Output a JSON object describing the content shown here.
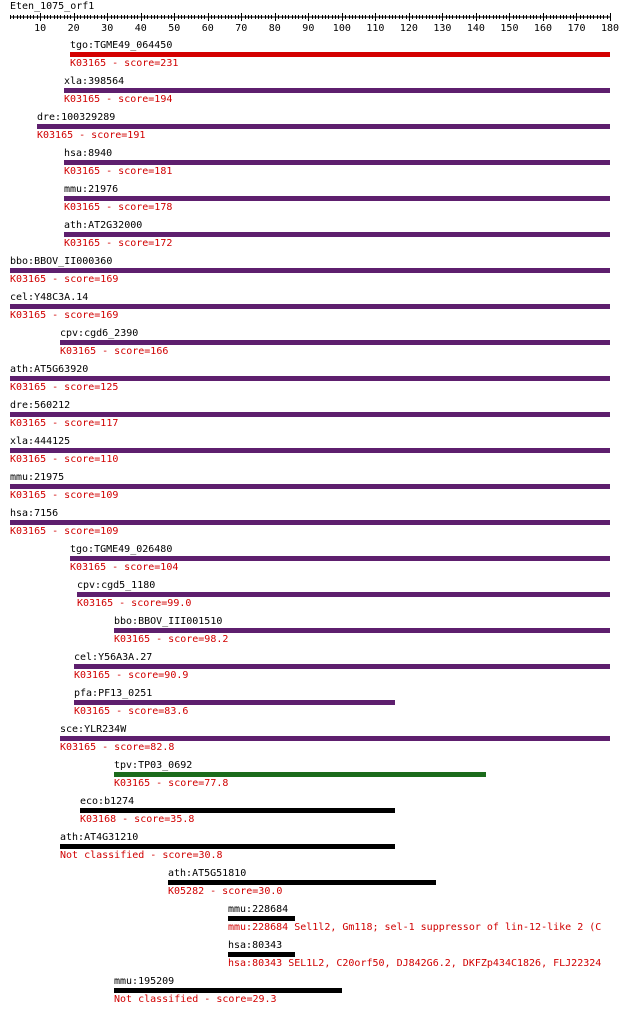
{
  "query": {
    "title": "Eten_1075_orf1",
    "length": 180,
    "ticks": [
      10,
      20,
      30,
      40,
      50,
      60,
      70,
      80,
      90,
      100,
      110,
      120,
      130,
      140,
      150,
      160,
      170,
      180
    ]
  },
  "colors": {
    "purple": "#5e1f6e",
    "red": "#d40000",
    "green": "#1b6b1b",
    "black": "#000000",
    "label": "#d00000"
  },
  "hits": [
    {
      "gene": "tgo:TGME49_064450",
      "sub": "K03165 - score=231",
      "start": 19,
      "end": 180,
      "color": "red"
    },
    {
      "gene": "xla:398564",
      "sub": "K03165 - score=194",
      "start": 17,
      "end": 180,
      "color": "purple"
    },
    {
      "gene": "dre:100329289",
      "sub": "K03165 - score=191",
      "start": 9,
      "end": 180,
      "color": "purple"
    },
    {
      "gene": "hsa:8940",
      "sub": "K03165 - score=181",
      "start": 17,
      "end": 180,
      "color": "purple"
    },
    {
      "gene": "mmu:21976",
      "sub": "K03165 - score=178",
      "start": 17,
      "end": 180,
      "color": "purple"
    },
    {
      "gene": "ath:AT2G32000",
      "sub": "K03165 - score=172",
      "start": 17,
      "end": 180,
      "color": "purple"
    },
    {
      "gene": "bbo:BBOV_II000360",
      "sub": "K03165 - score=169",
      "start": 1,
      "end": 180,
      "color": "purple"
    },
    {
      "gene": "cel:Y48C3A.14",
      "sub": "K03165 - score=169",
      "start": 1,
      "end": 180,
      "color": "purple"
    },
    {
      "gene": "cpv:cgd6_2390",
      "sub": "K03165 - score=166",
      "start": 16,
      "end": 180,
      "color": "purple"
    },
    {
      "gene": "ath:AT5G63920",
      "sub": "K03165 - score=125",
      "start": 1,
      "end": 180,
      "color": "purple"
    },
    {
      "gene": "dre:560212",
      "sub": "K03165 - score=117",
      "start": 1,
      "end": 180,
      "color": "purple"
    },
    {
      "gene": "xla:444125",
      "sub": "K03165 - score=110",
      "start": 1,
      "end": 180,
      "color": "purple"
    },
    {
      "gene": "mmu:21975",
      "sub": "K03165 - score=109",
      "start": 1,
      "end": 180,
      "color": "purple"
    },
    {
      "gene": "hsa:7156",
      "sub": "K03165 - score=109",
      "start": 1,
      "end": 180,
      "color": "purple"
    },
    {
      "gene": "tgo:TGME49_026480",
      "sub": "K03165 - score=104",
      "start": 19,
      "end": 180,
      "color": "purple"
    },
    {
      "gene": "cpv:cgd5_1180",
      "sub": "K03165 - score=99.0",
      "start": 21,
      "end": 180,
      "color": "purple"
    },
    {
      "gene": "bbo:BBOV_III001510",
      "sub": "K03165 - score=98.2",
      "start": 32,
      "end": 180,
      "color": "purple"
    },
    {
      "gene": "cel:Y56A3A.27",
      "sub": "K03165 - score=90.9",
      "start": 20,
      "end": 180,
      "color": "purple"
    },
    {
      "gene": "pfa:PF13_0251",
      "sub": "K03165 - score=83.6",
      "start": 20,
      "end": 116,
      "color": "purple"
    },
    {
      "gene": "sce:YLR234W",
      "sub": "K03165 - score=82.8",
      "start": 16,
      "end": 180,
      "color": "purple"
    },
    {
      "gene": "tpv:TP03_0692",
      "sub": "K03165 - score=77.8",
      "start": 32,
      "end": 143,
      "color": "green"
    },
    {
      "gene": "eco:b1274",
      "sub": "K03168 - score=35.8",
      "start": 22,
      "end": 116,
      "color": "black"
    },
    {
      "gene": "ath:AT4G31210",
      "sub": "Not classified - score=30.8",
      "start": 16,
      "end": 116,
      "color": "black"
    },
    {
      "gene": "ath:AT5G51810",
      "sub": "K05282 - score=30.0",
      "start": 48,
      "end": 128,
      "color": "black"
    },
    {
      "gene": "mmu:228684",
      "sub": "mmu:228684  Sel1l2, Gm118; sel-1 suppressor of lin-12-like 2 (C",
      "start": 66,
      "end": 86,
      "color": "black"
    },
    {
      "gene": "hsa:80343",
      "sub": "hsa:80343  SEL1L2, C20orf50, DJ842G6.2, DKFZp434C1826, FLJ22324",
      "start": 66,
      "end": 86,
      "color": "black"
    },
    {
      "gene": "mmu:195209",
      "sub": "Not classified - score=29.3",
      "start": 32,
      "end": 100,
      "color": "black"
    }
  ]
}
